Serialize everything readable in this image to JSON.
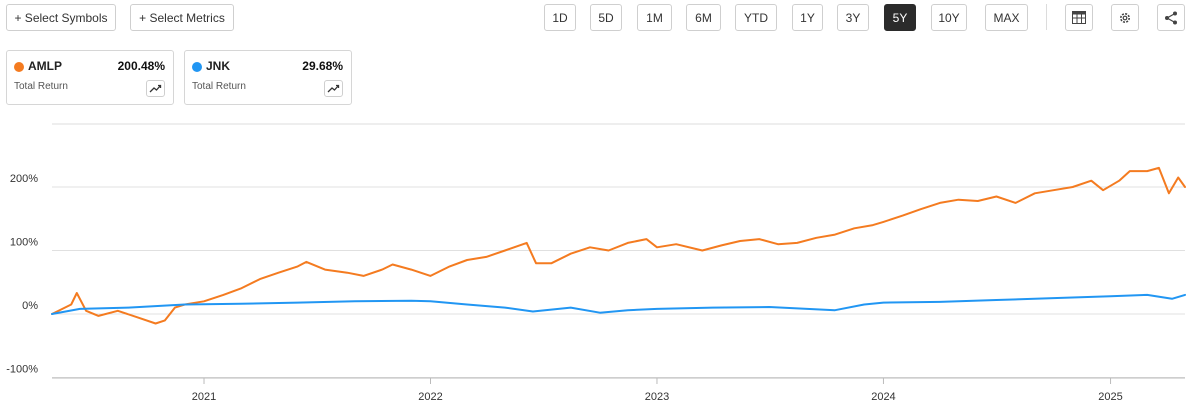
{
  "toolbar": {
    "select_symbols": "+ Select Symbols",
    "select_metrics": "+ Select Metrics",
    "ranges": [
      "1D",
      "5D",
      "1M",
      "6M",
      "YTD",
      "1Y",
      "3Y",
      "5Y",
      "10Y",
      "MAX"
    ],
    "active_range": "5Y",
    "icons": [
      "table-icon",
      "gear-icon",
      "share-icon"
    ]
  },
  "legend": [
    {
      "symbol": "AMLP",
      "value": "200.48%",
      "metric": "Total Return",
      "color": "#f47b20",
      "icon": "trend-icon"
    },
    {
      "symbol": "JNK",
      "value": "29.68%",
      "metric": "Total Return",
      "color": "#2196f3",
      "icon": "trend-icon"
    }
  ],
  "chart_data": {
    "type": "line",
    "title": "",
    "xlabel": "",
    "ylabel": "",
    "ylim": [
      -100,
      300
    ],
    "y_ticks": [
      -100,
      0,
      100,
      200
    ],
    "y_tick_labels": [
      "-100%",
      "0%",
      "100%",
      "200%"
    ],
    "x_ticks": [
      "2021-01-01",
      "2022-01-01",
      "2023-01-01",
      "2024-01-01",
      "2025-01-01"
    ],
    "x_tick_labels": [
      "2021",
      "2022",
      "2023",
      "2024",
      "2025"
    ],
    "x_range": [
      "2020-05-01",
      "2025-05-01"
    ],
    "grid": "horizontal",
    "series": [
      {
        "name": "AMLP",
        "color": "#f47b20",
        "points": [
          [
            "2020-05-01",
            0
          ],
          [
            "2020-06-01",
            15
          ],
          [
            "2020-06-10",
            33
          ],
          [
            "2020-06-25",
            5
          ],
          [
            "2020-07-15",
            -3
          ],
          [
            "2020-08-15",
            5
          ],
          [
            "2020-09-15",
            -5
          ],
          [
            "2020-10-15",
            -15
          ],
          [
            "2020-10-30",
            -10
          ],
          [
            "2020-11-15",
            10
          ],
          [
            "2020-12-01",
            15
          ],
          [
            "2021-01-01",
            20
          ],
          [
            "2021-02-01",
            30
          ],
          [
            "2021-03-01",
            40
          ],
          [
            "2021-04-01",
            55
          ],
          [
            "2021-05-01",
            65
          ],
          [
            "2021-06-01",
            75
          ],
          [
            "2021-06-15",
            82
          ],
          [
            "2021-07-15",
            70
          ],
          [
            "2021-08-20",
            65
          ],
          [
            "2021-09-15",
            60
          ],
          [
            "2021-10-15",
            70
          ],
          [
            "2021-11-01",
            78
          ],
          [
            "2021-12-01",
            70
          ],
          [
            "2022-01-01",
            60
          ],
          [
            "2022-02-01",
            75
          ],
          [
            "2022-03-01",
            85
          ],
          [
            "2022-04-01",
            90
          ],
          [
            "2022-05-01",
            100
          ],
          [
            "2022-06-05",
            112
          ],
          [
            "2022-06-20",
            80
          ],
          [
            "2022-07-15",
            80
          ],
          [
            "2022-08-15",
            95
          ],
          [
            "2022-09-15",
            105
          ],
          [
            "2022-10-15",
            100
          ],
          [
            "2022-11-15",
            112
          ],
          [
            "2022-12-15",
            118
          ],
          [
            "2023-01-01",
            105
          ],
          [
            "2023-02-01",
            110
          ],
          [
            "2023-03-15",
            100
          ],
          [
            "2023-04-15",
            108
          ],
          [
            "2023-05-15",
            115
          ],
          [
            "2023-06-15",
            118
          ],
          [
            "2023-07-15",
            110
          ],
          [
            "2023-08-15",
            112
          ],
          [
            "2023-09-15",
            120
          ],
          [
            "2023-10-15",
            125
          ],
          [
            "2023-11-15",
            135
          ],
          [
            "2023-12-15",
            140
          ],
          [
            "2024-01-01",
            145
          ],
          [
            "2024-02-01",
            155
          ],
          [
            "2024-03-01",
            165
          ],
          [
            "2024-04-01",
            175
          ],
          [
            "2024-05-01",
            180
          ],
          [
            "2024-06-01",
            178
          ],
          [
            "2024-07-01",
            185
          ],
          [
            "2024-08-01",
            175
          ],
          [
            "2024-09-01",
            190
          ],
          [
            "2024-10-01",
            195
          ],
          [
            "2024-11-01",
            200
          ],
          [
            "2024-12-01",
            210
          ],
          [
            "2024-12-20",
            195
          ],
          [
            "2025-01-15",
            210
          ],
          [
            "2025-02-01",
            225
          ],
          [
            "2025-03-01",
            225
          ],
          [
            "2025-03-20",
            230
          ],
          [
            "2025-04-05",
            190
          ],
          [
            "2025-04-20",
            215
          ],
          [
            "2025-05-01",
            200
          ]
        ]
      },
      {
        "name": "JNK",
        "color": "#2196f3",
        "points": [
          [
            "2020-05-01",
            0
          ],
          [
            "2020-06-15",
            8
          ],
          [
            "2020-09-01",
            10
          ],
          [
            "2020-12-01",
            15
          ],
          [
            "2021-03-01",
            16
          ],
          [
            "2021-06-01",
            18
          ],
          [
            "2021-09-01",
            20
          ],
          [
            "2021-12-01",
            21
          ],
          [
            "2022-01-01",
            20
          ],
          [
            "2022-03-01",
            15
          ],
          [
            "2022-05-01",
            10
          ],
          [
            "2022-06-15",
            4
          ],
          [
            "2022-08-15",
            10
          ],
          [
            "2022-10-01",
            2
          ],
          [
            "2022-11-15",
            6
          ],
          [
            "2023-01-01",
            8
          ],
          [
            "2023-04-01",
            10
          ],
          [
            "2023-07-01",
            11
          ],
          [
            "2023-10-15",
            6
          ],
          [
            "2023-12-01",
            15
          ],
          [
            "2024-01-01",
            18
          ],
          [
            "2024-04-01",
            19
          ],
          [
            "2024-07-01",
            22
          ],
          [
            "2024-10-01",
            25
          ],
          [
            "2025-01-01",
            28
          ],
          [
            "2025-03-01",
            30
          ],
          [
            "2025-04-10",
            24
          ],
          [
            "2025-05-01",
            30
          ]
        ]
      }
    ]
  }
}
